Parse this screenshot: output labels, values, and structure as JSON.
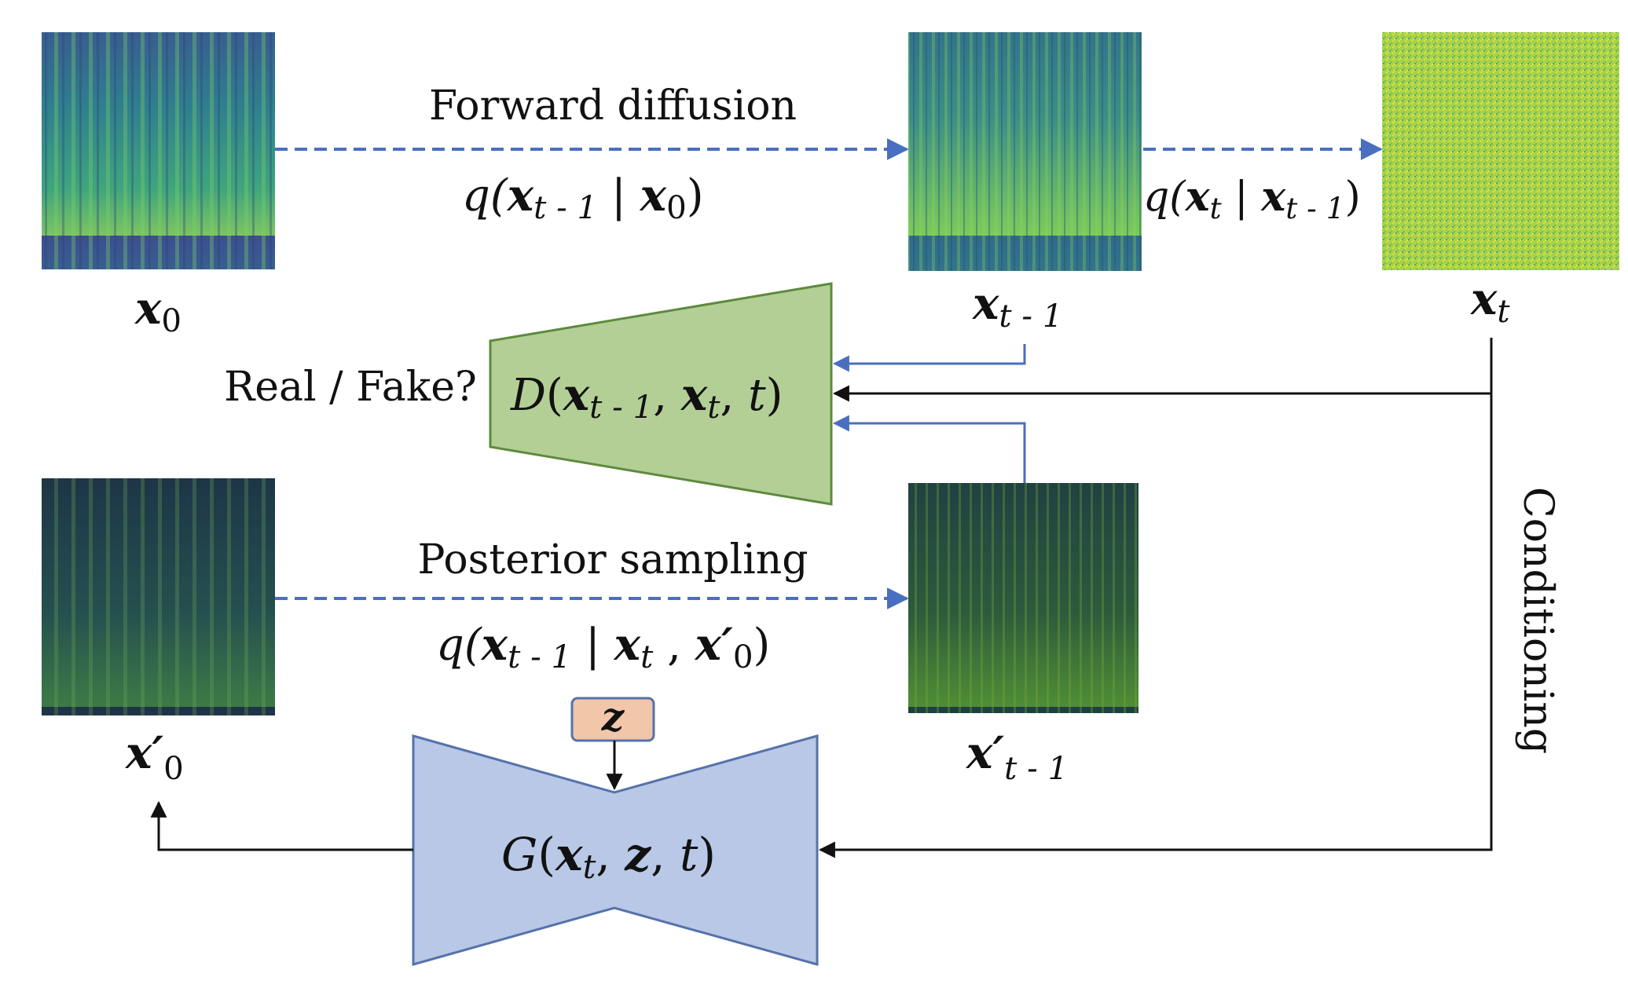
{
  "labels": {
    "forward": "Forward diffusion",
    "posterior": "Posterior sampling",
    "realfake": "Real / Fake?",
    "conditioning": "Conditioning"
  },
  "math": {
    "q_forward_1": {
      "q": "q(",
      "x": "x",
      "sub1": "t - 1",
      "bar": " | ",
      "x2": "x",
      "sub2": "0",
      "close": ")"
    },
    "q_forward_2": {
      "q": "q(",
      "x": "x",
      "sub1": "t",
      "bar": " | ",
      "x2": "x",
      "sub2": "t - 1",
      "close": ")"
    },
    "q_posterior": {
      "q": "q(",
      "x": "x",
      "sub1": "t - 1",
      "bar": " | ",
      "x2": "x",
      "sub2": "t",
      "comma": " , ",
      "x3": "x",
      "prime": "′",
      "sub3": "0",
      "close": ")"
    },
    "disc": {
      "D": "D",
      "open": "(",
      "x1": "x",
      "s1": "t - 1",
      "c1": ", ",
      "x2": "x",
      "s2": "t",
      "c2": ", ",
      "t": "t",
      "close": ")"
    },
    "gen": {
      "G": "G",
      "open": "(",
      "x1": "x",
      "s1": "t",
      "c1": ", ",
      "z": "z",
      "c2": ", ",
      "t": "t",
      "close": ")"
    },
    "z": "z"
  },
  "images": {
    "x0": {
      "label": "x",
      "sub": "0"
    },
    "xt_minus_1": {
      "label": "x",
      "sub": "t - 1"
    },
    "xt": {
      "label": "x",
      "sub": "t"
    },
    "x0_prime": {
      "label": "x",
      "prime": "′",
      "sub": "0"
    },
    "xt_minus_1_prime": {
      "label": "x",
      "prime": "′",
      "sub": "t - 1"
    }
  },
  "colors": {
    "disc_fill": "#b3cf96",
    "disc_stroke": "#5e8a3c",
    "gen_fill": "#b8c8e6",
    "gen_stroke": "#5672aa",
    "z_fill": "#f2c6a8",
    "z_stroke": "#5672aa",
    "dashed_arrow": "#4a6fc0",
    "solid_blue": "#4a6fc0",
    "black": "#111111"
  }
}
